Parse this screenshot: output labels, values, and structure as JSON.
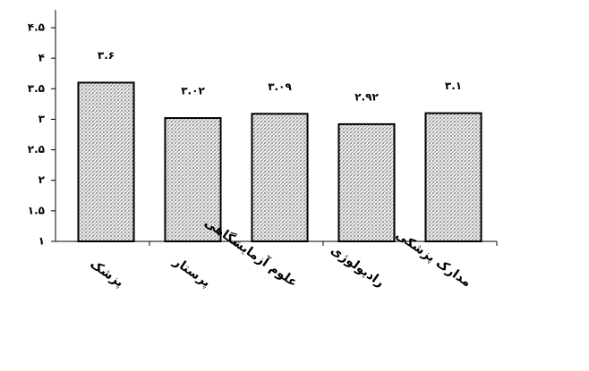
{
  "chart_data": {
    "type": "bar",
    "categories": [
      "پزشک",
      "پرستار",
      "علوم آزمایشگاهی",
      "رادیولوژی",
      "مدارک پزشکی"
    ],
    "values": [
      3.6,
      3.02,
      3.09,
      2.92,
      3.1
    ],
    "value_labels": [
      "۳.۶",
      "۳.۰۲",
      "۳.۰۹",
      "۲.۹۲",
      "۳.۱"
    ],
    "color": "#9a9a9a",
    "ylim": [
      1,
      4.5
    ],
    "yticks": [
      {
        "value": 1,
        "label": "۱"
      },
      {
        "value": 1.5,
        "label": "۱.۵"
      },
      {
        "value": 2,
        "label": "۲"
      },
      {
        "value": 2.5,
        "label": "۲.۵"
      },
      {
        "value": 3,
        "label": "۳"
      },
      {
        "value": 3.5,
        "label": "۳.۵"
      },
      {
        "value": 4,
        "label": "۴"
      },
      {
        "value": 4.5,
        "label": "۴.۵"
      }
    ],
    "grid": false
  }
}
